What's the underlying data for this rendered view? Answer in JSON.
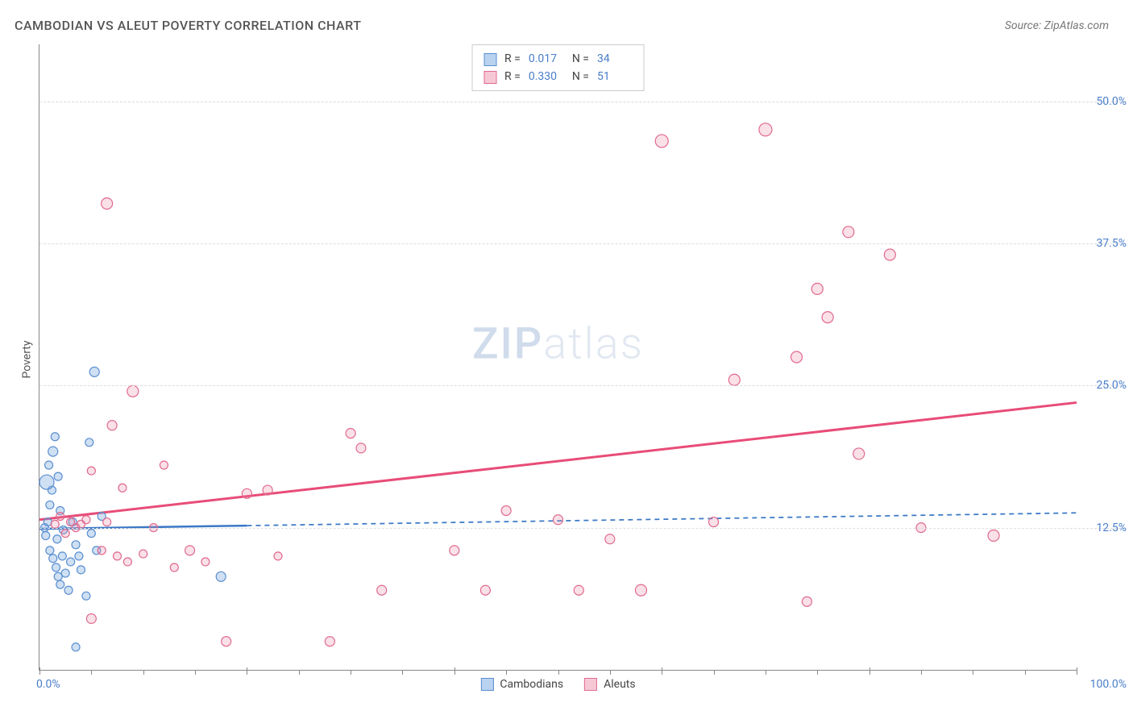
{
  "chart": {
    "type": "scatter",
    "title": "CAMBODIAN VS ALEUT POVERTY CORRELATION CHART",
    "source_label": "Source: ZipAtlas.com",
    "y_axis_label": "Poverty",
    "watermark": {
      "strong": "ZIP",
      "light": "atlas"
    },
    "xlim": [
      0,
      100
    ],
    "ylim": [
      0,
      55
    ],
    "x_tick_step": 20,
    "x_minor_step": 5,
    "y_ticks": [
      12.5,
      25.0,
      37.5,
      50.0
    ],
    "y_tick_labels": [
      "12.5%",
      "25.0%",
      "37.5%",
      "50.0%"
    ],
    "x_left_label": "0.0%",
    "x_right_label": "100.0%",
    "grid_color": "#dddddd",
    "axis_color": "#888888",
    "background_color": "#ffffff",
    "tick_label_color": "#4a7ec9",
    "series": [
      {
        "name": "Cambodians",
        "color_fill": "rgba(120,165,220,0.35)",
        "color_stroke": "#5a8fd0",
        "swatch_fill": "#b9d2ef",
        "swatch_border": "#5a8fd0",
        "trend": {
          "color": "#3b78c6",
          "width": 2.5,
          "y_start": 12.4,
          "y_end": 13.8,
          "solid_until_x": 20,
          "dash": "6 5"
        },
        "R": "0.017",
        "N": "34",
        "points": [
          {
            "x": 0.5,
            "y": 12.5,
            "r": 5
          },
          {
            "x": 0.6,
            "y": 11.8,
            "r": 5
          },
          {
            "x": 0.8,
            "y": 13.0,
            "r": 5
          },
          {
            "x": 1.0,
            "y": 14.5,
            "r": 5
          },
          {
            "x": 1.2,
            "y": 15.8,
            "r": 5
          },
          {
            "x": 1.3,
            "y": 19.2,
            "r": 6
          },
          {
            "x": 1.5,
            "y": 20.5,
            "r": 5
          },
          {
            "x": 1.8,
            "y": 17.0,
            "r": 5
          },
          {
            "x": 1.0,
            "y": 10.5,
            "r": 5
          },
          {
            "x": 1.3,
            "y": 9.8,
            "r": 5
          },
          {
            "x": 1.6,
            "y": 9.0,
            "r": 5
          },
          {
            "x": 1.8,
            "y": 8.2,
            "r": 5
          },
          {
            "x": 2.0,
            "y": 7.5,
            "r": 5
          },
          {
            "x": 2.2,
            "y": 10.0,
            "r": 5
          },
          {
            "x": 2.5,
            "y": 8.5,
            "r": 5
          },
          {
            "x": 2.8,
            "y": 7.0,
            "r": 5
          },
          {
            "x": 3.0,
            "y": 9.5,
            "r": 5
          },
          {
            "x": 3.2,
            "y": 13.0,
            "r": 5
          },
          {
            "x": 3.5,
            "y": 11.0,
            "r": 5
          },
          {
            "x": 3.8,
            "y": 10.0,
            "r": 5
          },
          {
            "x": 4.0,
            "y": 8.8,
            "r": 5
          },
          {
            "x": 4.5,
            "y": 6.5,
            "r": 5
          },
          {
            "x": 5.0,
            "y": 12.0,
            "r": 5
          },
          {
            "x": 5.5,
            "y": 10.5,
            "r": 5
          },
          {
            "x": 5.3,
            "y": 26.2,
            "r": 6
          },
          {
            "x": 0.7,
            "y": 16.5,
            "r": 9
          },
          {
            "x": 6.0,
            "y": 13.5,
            "r": 5
          },
          {
            "x": 2.3,
            "y": 12.3,
            "r": 5
          },
          {
            "x": 3.5,
            "y": 2.0,
            "r": 5
          },
          {
            "x": 4.8,
            "y": 20.0,
            "r": 5
          },
          {
            "x": 17.5,
            "y": 8.2,
            "r": 6
          },
          {
            "x": 2.0,
            "y": 14.0,
            "r": 5
          },
          {
            "x": 1.7,
            "y": 11.5,
            "r": 5
          },
          {
            "x": 0.9,
            "y": 18.0,
            "r": 5
          }
        ]
      },
      {
        "name": "Aleuts",
        "color_fill": "rgba(235,130,160,0.25)",
        "color_stroke": "#e06a8f",
        "swatch_fill": "#f6c8d5",
        "swatch_border": "#e06a8f",
        "trend": {
          "color": "#e84c78",
          "width": 3,
          "y_start": 13.2,
          "y_end": 23.5,
          "solid_until_x": 100,
          "dash": null
        },
        "R": "0.330",
        "N": "51",
        "points": [
          {
            "x": 1.5,
            "y": 12.8,
            "r": 5
          },
          {
            "x": 2.0,
            "y": 13.5,
            "r": 5
          },
          {
            "x": 2.5,
            "y": 12.0,
            "r": 5
          },
          {
            "x": 3.0,
            "y": 13.0,
            "r": 5
          },
          {
            "x": 3.5,
            "y": 12.5,
            "r": 5
          },
          {
            "x": 4.0,
            "y": 12.8,
            "r": 5
          },
          {
            "x": 4.5,
            "y": 13.2,
            "r": 5
          },
          {
            "x": 5.0,
            "y": 17.5,
            "r": 5
          },
          {
            "x": 5.0,
            "y": 4.5,
            "r": 6
          },
          {
            "x": 6.0,
            "y": 10.5,
            "r": 5
          },
          {
            "x": 6.5,
            "y": 13.0,
            "r": 5
          },
          {
            "x": 7.0,
            "y": 21.5,
            "r": 6
          },
          {
            "x": 7.5,
            "y": 10.0,
            "r": 5
          },
          {
            "x": 8.0,
            "y": 16.0,
            "r": 5
          },
          {
            "x": 8.5,
            "y": 9.5,
            "r": 5
          },
          {
            "x": 9.0,
            "y": 24.5,
            "r": 7
          },
          {
            "x": 10.0,
            "y": 10.2,
            "r": 5
          },
          {
            "x": 11.0,
            "y": 12.5,
            "r": 5
          },
          {
            "x": 12.0,
            "y": 18.0,
            "r": 5
          },
          {
            "x": 13.0,
            "y": 9.0,
            "r": 5
          },
          {
            "x": 14.5,
            "y": 10.5,
            "r": 6
          },
          {
            "x": 16.0,
            "y": 9.5,
            "r": 5
          },
          {
            "x": 18.0,
            "y": 2.5,
            "r": 6
          },
          {
            "x": 20.0,
            "y": 15.5,
            "r": 6
          },
          {
            "x": 22.0,
            "y": 15.8,
            "r": 6
          },
          {
            "x": 23.0,
            "y": 10.0,
            "r": 5
          },
          {
            "x": 28.0,
            "y": 2.5,
            "r": 6
          },
          {
            "x": 30.0,
            "y": 20.8,
            "r": 6
          },
          {
            "x": 31.0,
            "y": 19.5,
            "r": 6
          },
          {
            "x": 33.0,
            "y": 7.0,
            "r": 6
          },
          {
            "x": 40.0,
            "y": 10.5,
            "r": 6
          },
          {
            "x": 43.0,
            "y": 7.0,
            "r": 6
          },
          {
            "x": 45.0,
            "y": 14.0,
            "r": 6
          },
          {
            "x": 50.0,
            "y": 13.2,
            "r": 6
          },
          {
            "x": 52.0,
            "y": 7.0,
            "r": 6
          },
          {
            "x": 55.0,
            "y": 11.5,
            "r": 6
          },
          {
            "x": 58.0,
            "y": 7.0,
            "r": 7
          },
          {
            "x": 60.0,
            "y": 46.5,
            "r": 8
          },
          {
            "x": 65.0,
            "y": 13.0,
            "r": 6
          },
          {
            "x": 67.0,
            "y": 25.5,
            "r": 7
          },
          {
            "x": 70.0,
            "y": 47.5,
            "r": 8
          },
          {
            "x": 74.0,
            "y": 6.0,
            "r": 6
          },
          {
            "x": 73.0,
            "y": 27.5,
            "r": 7
          },
          {
            "x": 75.0,
            "y": 33.5,
            "r": 7
          },
          {
            "x": 76.0,
            "y": 31.0,
            "r": 7
          },
          {
            "x": 78.0,
            "y": 38.5,
            "r": 7
          },
          {
            "x": 79.0,
            "y": 19.0,
            "r": 7
          },
          {
            "x": 82.0,
            "y": 36.5,
            "r": 7
          },
          {
            "x": 6.5,
            "y": 41.0,
            "r": 7
          },
          {
            "x": 92.0,
            "y": 11.8,
            "r": 7
          },
          {
            "x": 85.0,
            "y": 12.5,
            "r": 6
          }
        ]
      }
    ]
  }
}
